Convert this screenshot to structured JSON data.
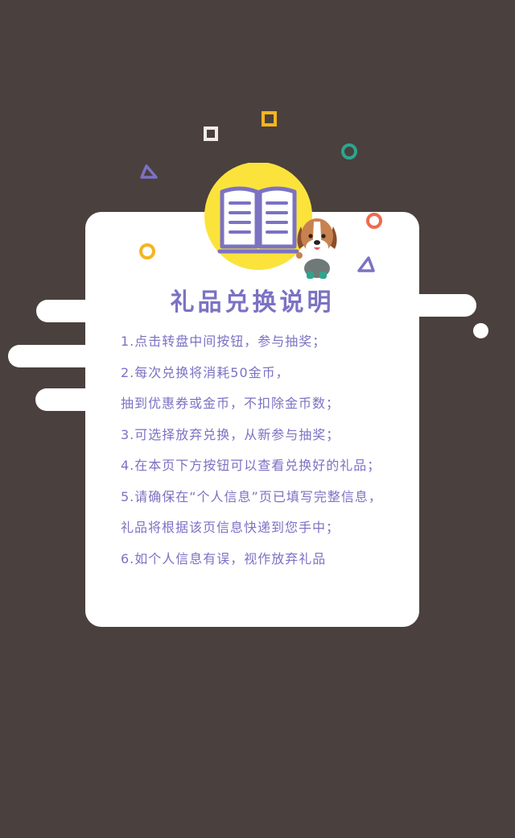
{
  "title": "礼品兑换说明",
  "rules": [
    "1.点击转盘中间按钮，参与抽奖；",
    "2.每次兑换将消耗50金币，",
    "抽到优惠券或金币，不扣除金币数；",
    "3.可选择放弃兑换，从新参与抽奖；",
    "4.在本页下方按钮可以查看兑换好的礼品；",
    "5.请确保在“个人信息”页已填写完整信息，",
    "礼品将根据该页信息快递到您手中；",
    "6.如个人信息有误，视作放弃礼品"
  ],
  "colors": {
    "background": "#4a403d",
    "card": "#ffffff",
    "text": "#7b72c3",
    "book_circle": "#fbe33c",
    "accent_yellow": "#f5b51f",
    "accent_green": "#2fa48e",
    "accent_red": "#ef6a4e",
    "accent_purple": "#7b72c3"
  },
  "icons": [
    "open-book-icon",
    "beagle-dog-mascot",
    "triangle-shape",
    "square-shape",
    "ring-shape"
  ]
}
